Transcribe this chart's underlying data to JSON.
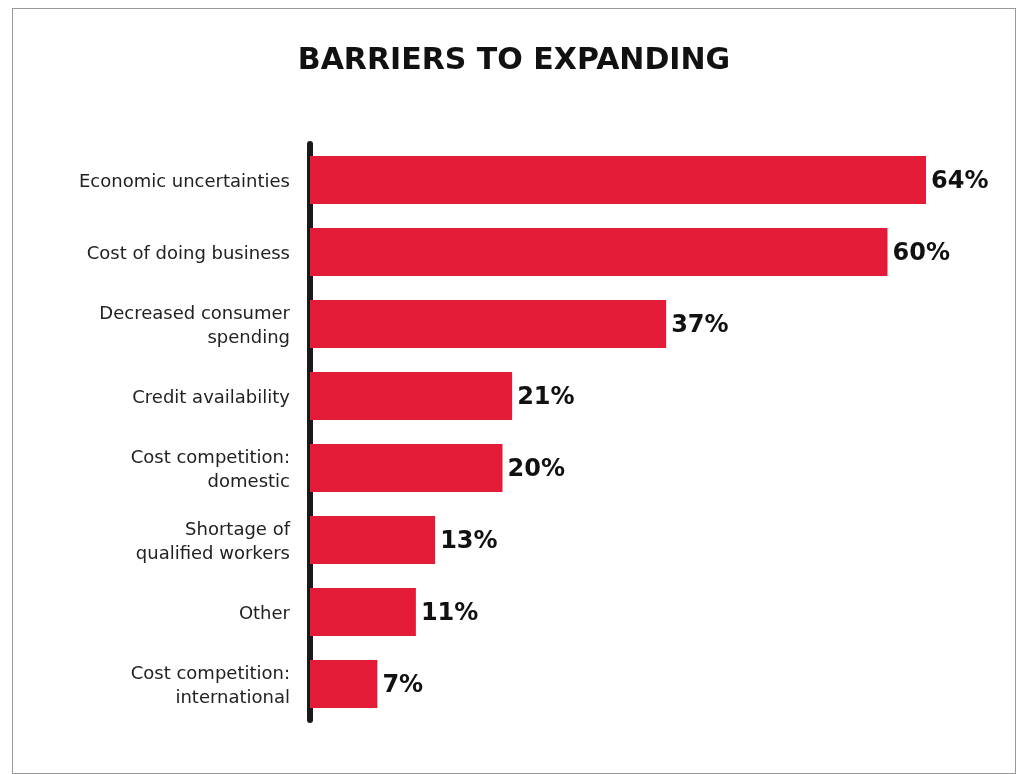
{
  "chart_data": {
    "type": "bar",
    "orientation": "horizontal",
    "title": "BARRIERS TO EXPANDING",
    "categories": [
      "Economic uncertainties",
      "Cost of doing business",
      "Decreased consumer\nspending",
      "Credit availability",
      "Cost competition:\ndomestic",
      "Shortage of\nqualified workers",
      "Other",
      "Cost competition:\ninternational"
    ],
    "values": [
      64,
      60,
      37,
      21,
      20,
      13,
      11,
      7
    ],
    "value_labels": [
      "64%",
      "60%",
      "37%",
      "21%",
      "20%",
      "13%",
      "11%",
      "7%"
    ],
    "color": "#e41b37"
  }
}
